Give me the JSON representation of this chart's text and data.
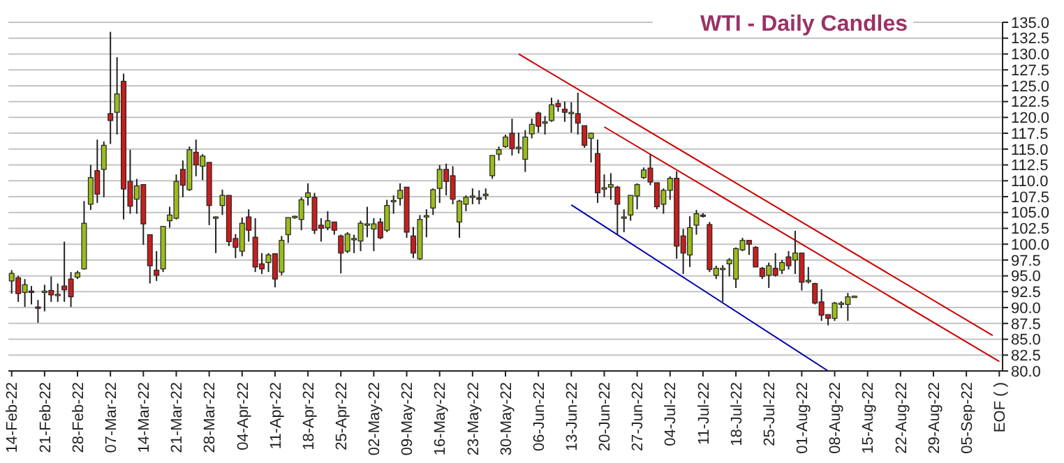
{
  "chart_data": {
    "type": "candlestick",
    "title": "WTI - Daily Candles",
    "grid": "y",
    "categories": [
      "14-Feb-22",
      null,
      null,
      null,
      null,
      "21-Feb-22",
      null,
      null,
      null,
      null,
      "28-Feb-22",
      null,
      null,
      null,
      null,
      "07-Mar-22",
      null,
      null,
      null,
      null,
      "14-Mar-22",
      null,
      null,
      null,
      null,
      "21-Mar-22",
      null,
      null,
      null,
      null,
      "28-Mar-22",
      null,
      null,
      null,
      null,
      "04-Apr-22",
      null,
      null,
      null,
      null,
      "11-Apr-22",
      null,
      null,
      null,
      null,
      "18-Apr-22",
      null,
      null,
      null,
      null,
      "25-Apr-22",
      null,
      null,
      null,
      null,
      "02-May-22",
      null,
      null,
      null,
      null,
      "09-May-22",
      null,
      null,
      null,
      null,
      "16-May-22",
      null,
      null,
      null,
      null,
      "23-May-22",
      null,
      null,
      null,
      null,
      "30-May-22",
      null,
      null,
      null,
      null,
      "06-Jun-22",
      null,
      null,
      null,
      null,
      "13-Jun-22",
      null,
      null,
      null,
      null,
      "20-Jun-22",
      null,
      null,
      null,
      null,
      "27-Jun-22",
      null,
      null,
      null,
      null,
      "04-Jul-22",
      null,
      null,
      null,
      null,
      "11-Jul-22",
      null,
      null,
      null,
      null,
      "18-Jul-22",
      null,
      null,
      null,
      null,
      "25-Jul-22",
      null,
      null,
      null,
      null,
      "01-Aug-22",
      null,
      null,
      null,
      null,
      "08-Aug-22",
      null,
      null,
      null,
      null,
      "15-Aug-22",
      null,
      null,
      null,
      null,
      "22-Aug-22",
      null,
      null,
      null,
      null,
      "29-Aug-22",
      null,
      null,
      null,
      null,
      "05-Sep-22",
      null,
      null,
      null,
      null,
      "EOF ( )"
    ],
    "ylim": [
      80,
      135
    ],
    "yticks": [
      {
        "value": 80,
        "label": "80.0"
      },
      {
        "value": 82.5,
        "label": "82.5"
      },
      {
        "value": 85,
        "label": "85.0"
      },
      {
        "value": 87.5,
        "label": "87.5"
      },
      {
        "value": 90,
        "label": "90.0"
      },
      {
        "value": 92.5,
        "label": "92.5"
      },
      {
        "value": 95,
        "label": "95.0"
      },
      {
        "value": 97.5,
        "label": "97.5"
      },
      {
        "value": 100,
        "label": "100.0"
      },
      {
        "value": 102.5,
        "label": "102.5"
      },
      {
        "value": 105,
        "label": "105.0"
      },
      {
        "value": 107.5,
        "label": "107.5"
      },
      {
        "value": 110,
        "label": "110.0"
      },
      {
        "value": 112.5,
        "label": "112.5"
      },
      {
        "value": 115,
        "label": "115.0"
      },
      {
        "value": 117.5,
        "label": "117.5"
      },
      {
        "value": 120,
        "label": "120.0"
      },
      {
        "value": 122.5,
        "label": "122.5"
      },
      {
        "value": 125,
        "label": "125.0"
      },
      {
        "value": 127.5,
        "label": "127.5"
      },
      {
        "value": 130,
        "label": "130.0"
      },
      {
        "value": 132.5,
        "label": "132.5"
      },
      {
        "value": 135,
        "label": "135.0"
      }
    ],
    "ohlc": [
      [
        94.2,
        95.9,
        92.2,
        95.4
      ],
      [
        94.7,
        95.0,
        90.9,
        92.2
      ],
      [
        92.4,
        94.5,
        90.1,
        93.6
      ],
      [
        92.6,
        93.4,
        90.5,
        92.5
      ],
      [
        90.1,
        91.2,
        87.6,
        90.0
      ],
      [
        92.5,
        93.6,
        89.4,
        92.6
      ],
      [
        92.7,
        94.9,
        90.9,
        92.0
      ],
      [
        92.0,
        93.8,
        90.9,
        92.1
      ],
      [
        93.4,
        100.4,
        90.9,
        92.8
      ],
      [
        94.5,
        95.6,
        90.1,
        91.7
      ],
      [
        94.8,
        95.8,
        94.5,
        95.5
      ],
      [
        96.1,
        106.8,
        96.0,
        103.3
      ],
      [
        106.3,
        112.5,
        105.4,
        110.5
      ],
      [
        111.6,
        116.5,
        106.5,
        107.9
      ],
      [
        111.8,
        116.2,
        107.4,
        115.6
      ],
      [
        120.6,
        133.5,
        115.8,
        119.5
      ],
      [
        120.8,
        129.5,
        117.3,
        123.7
      ],
      [
        125.7,
        126.9,
        103.9,
        108.7
      ],
      [
        109.9,
        114.9,
        104.8,
        106.0
      ],
      [
        107.1,
        110.3,
        104.8,
        109.2
      ],
      [
        109.4,
        109.4,
        99.9,
        103.2
      ],
      [
        101.5,
        101.5,
        93.8,
        96.6
      ],
      [
        95.9,
        98.9,
        94.2,
        95.1
      ],
      [
        96.1,
        102.8,
        95.6,
        102.8
      ],
      [
        103.7,
        105.9,
        102.6,
        104.6
      ],
      [
        104.1,
        111.0,
        103.9,
        109.9
      ],
      [
        111.8,
        113.2,
        107.4,
        109.3
      ],
      [
        108.6,
        115.4,
        108.4,
        114.9
      ],
      [
        114.5,
        116.5,
        110.7,
        112.5
      ],
      [
        112.3,
        114.2,
        110.1,
        113.9
      ],
      [
        112.9,
        112.9,
        103.0,
        106.1
      ],
      [
        104.3,
        104.4,
        98.6,
        104.3
      ],
      [
        106.1,
        108.6,
        104.6,
        107.7
      ],
      [
        107.7,
        107.7,
        99.7,
        100.4
      ],
      [
        100.9,
        101.6,
        97.8,
        99.5
      ],
      [
        98.9,
        104.2,
        98.1,
        103.3
      ],
      [
        104.3,
        105.5,
        100.4,
        102.2
      ],
      [
        101.1,
        104.1,
        95.6,
        96.4
      ],
      [
        96.9,
        98.6,
        95.3,
        96.1
      ],
      [
        97.1,
        98.6,
        95.6,
        98.3
      ],
      [
        98.5,
        98.5,
        93.2,
        94.5
      ],
      [
        95.6,
        101.3,
        95.1,
        100.6
      ],
      [
        101.5,
        104.2,
        100.2,
        104.2
      ],
      [
        104.3,
        104.5,
        104.0,
        104.4
      ],
      [
        103.9,
        107.4,
        102.2,
        107.0
      ],
      [
        107.4,
        109.6,
        106.1,
        108.1
      ],
      [
        107.4,
        108.1,
        101.6,
        102.2
      ],
      [
        103.0,
        104.1,
        100.4,
        102.5
      ],
      [
        102.6,
        105.2,
        102.2,
        103.7
      ],
      [
        103.5,
        103.5,
        101.5,
        102.2
      ],
      [
        101.3,
        101.5,
        95.4,
        98.6
      ],
      [
        98.9,
        101.9,
        98.6,
        101.6
      ],
      [
        100.7,
        101.5,
        98.6,
        100.9
      ],
      [
        100.5,
        103.7,
        98.9,
        103.3
      ],
      [
        103.1,
        105.9,
        101.1,
        103.2
      ],
      [
        102.4,
        104.1,
        98.9,
        103.2
      ],
      [
        103.5,
        104.1,
        100.8,
        101.0
      ],
      [
        102.2,
        107.0,
        101.9,
        106.1
      ],
      [
        106.8,
        107.7,
        104.8,
        106.9
      ],
      [
        107.2,
        109.6,
        106.1,
        108.5
      ],
      [
        109.0,
        109.0,
        101.0,
        101.9
      ],
      [
        101.3,
        102.7,
        97.8,
        98.6
      ],
      [
        97.7,
        104.6,
        97.5,
        103.9
      ],
      [
        104.4,
        105.5,
        101.1,
        104.5
      ],
      [
        105.7,
        108.8,
        104.6,
        108.6
      ],
      [
        108.8,
        112.5,
        106.5,
        111.8
      ],
      [
        111.8,
        112.7,
        107.7,
        109.9
      ],
      [
        110.8,
        112.3,
        106.3,
        107.1
      ],
      [
        103.5,
        107.0,
        101.0,
        106.8
      ],
      [
        106.3,
        107.7,
        105.2,
        107.4
      ],
      [
        107.5,
        108.8,
        106.3,
        107.6
      ],
      [
        107.3,
        108.5,
        106.3,
        107.2
      ],
      [
        107.8,
        108.8,
        107.0,
        107.9
      ],
      [
        110.8,
        114.0,
        110.3,
        114.0
      ],
      [
        114.2,
        115.4,
        113.2,
        114.9
      ],
      [
        115.4,
        117.3,
        115.2,
        116.9
      ],
      [
        117.5,
        119.8,
        114.0,
        115.1
      ],
      [
        115.2,
        117.6,
        114.3,
        115.3
      ],
      [
        113.4,
        118.0,
        111.4,
        116.9
      ],
      [
        117.4,
        119.8,
        116.7,
        118.9
      ],
      [
        120.7,
        120.9,
        117.6,
        118.6
      ],
      [
        119.2,
        120.2,
        117.3,
        119.3
      ],
      [
        119.5,
        123.1,
        119.3,
        122.0
      ],
      [
        122.2,
        122.8,
        120.9,
        121.7
      ],
      [
        121.3,
        122.5,
        119.3,
        120.8
      ],
      [
        120.6,
        122.4,
        117.6,
        120.8
      ],
      [
        120.6,
        123.9,
        117.3,
        119.1
      ],
      [
        118.7,
        118.7,
        115.2,
        115.6
      ],
      [
        116.7,
        117.6,
        112.9,
        117.5
      ],
      [
        114.3,
        116.5,
        106.5,
        108.1
      ],
      [
        108.8,
        111.0,
        107.4,
        108.9
      ],
      [
        109.0,
        111.2,
        107.0,
        109.4
      ],
      [
        109.0,
        109.2,
        101.5,
        106.3
      ],
      [
        104.2,
        105.5,
        101.9,
        104.3
      ],
      [
        104.6,
        107.7,
        103.7,
        107.7
      ],
      [
        107.6,
        109.6,
        105.5,
        109.4
      ],
      [
        110.5,
        112.1,
        110.3,
        111.7
      ],
      [
        112.0,
        114.2,
        109.3,
        109.8
      ],
      [
        109.7,
        109.7,
        105.5,
        105.9
      ],
      [
        106.3,
        108.8,
        104.8,
        108.5
      ],
      [
        108.5,
        110.7,
        107.0,
        110.4
      ],
      [
        110.4,
        111.5,
        97.7,
        99.7
      ],
      [
        101.3,
        102.4,
        95.3,
        98.6
      ],
      [
        98.3,
        104.4,
        96.4,
        102.6
      ],
      [
        103.0,
        105.4,
        101.5,
        104.8
      ],
      [
        104.6,
        104.9,
        104.2,
        104.5
      ],
      [
        103.1,
        103.5,
        95.6,
        96.0
      ],
      [
        95.1,
        96.6,
        94.5,
        96.2
      ],
      [
        96.1,
        96.7,
        90.9,
        96.2
      ],
      [
        96.9,
        97.8,
        94.9,
        97.5
      ],
      [
        94.5,
        99.5,
        93.1,
        99.3
      ],
      [
        99.1,
        101.0,
        98.9,
        100.6
      ],
      [
        100.6,
        100.6,
        98.3,
        100.0
      ],
      [
        99.5,
        99.7,
        96.4,
        96.4
      ],
      [
        96.2,
        96.4,
        94.5,
        94.9
      ],
      [
        95.1,
        97.1,
        93.1,
        96.6
      ],
      [
        96.2,
        98.6,
        94.9,
        95.1
      ],
      [
        95.9,
        97.5,
        95.3,
        97.1
      ],
      [
        98.0,
        98.9,
        96.0,
        96.6
      ],
      [
        97.5,
        102.1,
        95.3,
        98.6
      ],
      [
        98.6,
        98.6,
        92.7,
        94.0
      ],
      [
        94.2,
        96.4,
        93.8,
        94.3
      ],
      [
        93.8,
        93.9,
        90.5,
        90.7
      ],
      [
        90.9,
        92.9,
        87.9,
        88.8
      ],
      [
        88.9,
        88.9,
        87.2,
        88.3
      ],
      [
        88.3,
        90.9,
        87.9,
        90.7
      ],
      [
        90.6,
        91.0,
        89.9,
        90.7
      ],
      [
        90.5,
        92.3,
        87.9,
        91.7
      ],
      [
        91.8,
        91.9,
        91.7,
        91.8
      ],
      null,
      null,
      null,
      null,
      null,
      null,
      null,
      null,
      null,
      null,
      null,
      null,
      null,
      null,
      null,
      null,
      null,
      null,
      null,
      null,
      null,
      null
    ],
    "colors": [
      "#9cbc1c",
      "#c81e1e",
      "#9cbc1c",
      "#c81e1e",
      "#c81e1e",
      "#9cbc1c",
      "#c81e1e",
      "#9cbc1c",
      "#c81e1e",
      "#c81e1e",
      "#9cbc1c",
      "#9cbc1c",
      "#9cbc1c",
      "#c81e1e",
      "#9cbc1c",
      "#c81e1e",
      "#9cbc1c",
      "#c81e1e",
      "#c81e1e",
      "#9cbc1c",
      "#c81e1e",
      "#c81e1e",
      "#c81e1e",
      "#9cbc1c",
      "#9cbc1c",
      "#9cbc1c",
      "#c81e1e",
      "#9cbc1c",
      "#c81e1e",
      "#9cbc1c",
      "#c81e1e",
      "#9cbc1c",
      "#9cbc1c",
      "#c81e1e",
      "#c81e1e",
      "#9cbc1c",
      "#c81e1e",
      "#c81e1e",
      "#c81e1e",
      "#9cbc1c",
      "#c81e1e",
      "#9cbc1c",
      "#9cbc1c",
      "#9cbc1c",
      "#9cbc1c",
      "#9cbc1c",
      "#c81e1e",
      "#c81e1e",
      "#9cbc1c",
      "#c81e1e",
      "#c81e1e",
      "#9cbc1c",
      "#9cbc1c",
      "#9cbc1c",
      "#9cbc1c",
      "#9cbc1c",
      "#c81e1e",
      "#9cbc1c",
      "#9cbc1c",
      "#9cbc1c",
      "#c81e1e",
      "#c81e1e",
      "#9cbc1c",
      "#9cbc1c",
      "#9cbc1c",
      "#9cbc1c",
      "#c81e1e",
      "#c81e1e",
      "#9cbc1c",
      "#9cbc1c",
      "#9cbc1c",
      "#c81e1e",
      "#9cbc1c",
      "#9cbc1c",
      "#9cbc1c",
      "#9cbc1c",
      "#c81e1e",
      "#9cbc1c",
      "#9cbc1c",
      "#9cbc1c",
      "#c81e1e",
      "#9cbc1c",
      "#9cbc1c",
      "#c81e1e",
      "#c81e1e",
      "#9cbc1c",
      "#c81e1e",
      "#c81e1e",
      "#9cbc1c",
      "#c81e1e",
      "#9cbc1c",
      "#9cbc1c",
      "#c81e1e",
      "#9cbc1c",
      "#9cbc1c",
      "#9cbc1c",
      "#9cbc1c",
      "#c81e1e",
      "#c81e1e",
      "#9cbc1c",
      "#9cbc1c",
      "#c81e1e",
      "#c81e1e",
      "#9cbc1c",
      "#9cbc1c",
      "#c81e1e",
      "#c81e1e",
      "#9cbc1c",
      "#9cbc1c",
      "#9cbc1c",
      "#9cbc1c",
      "#9cbc1c",
      "#c81e1e",
      "#c81e1e",
      "#c81e1e",
      "#9cbc1c",
      "#c81e1e",
      "#9cbc1c",
      "#c81e1e",
      "#9cbc1c",
      "#c81e1e",
      "#9cbc1c",
      "#c81e1e",
      "#c81e1e",
      "#c81e1e",
      "#9cbc1c",
      "#9cbc1c",
      "#9cbc1c",
      "#9cbc1c",
      null,
      null,
      null,
      null,
      null,
      null,
      null,
      null,
      null,
      null,
      null,
      null,
      null,
      null,
      null,
      null,
      null,
      null,
      null,
      null,
      null,
      null
    ],
    "series": [
      {
        "type": "line",
        "color": "#cc0000",
        "values": [
          null,
          null,
          null,
          null,
          null,
          null,
          null,
          null,
          null,
          null,
          null,
          null,
          null,
          null,
          null,
          null,
          null,
          null,
          null,
          null,
          null,
          null,
          null,
          null,
          null,
          null,
          null,
          null,
          null,
          null,
          null,
          null,
          null,
          null,
          null,
          null,
          null,
          null,
          null,
          null,
          null,
          null,
          null,
          null,
          null,
          null,
          null,
          null,
          null,
          null,
          null,
          null,
          null,
          null,
          null,
          null,
          null,
          null,
          null,
          null,
          null,
          null,
          null,
          null,
          null,
          null,
          null,
          null,
          null,
          null,
          null,
          null,
          null,
          null,
          null,
          null,
          null,
          130.0,
          null,
          null,
          null,
          null,
          null,
          null,
          null,
          null,
          null,
          null,
          null,
          null,
          null,
          null,
          null,
          null,
          null,
          null,
          null,
          null,
          null,
          null,
          null,
          null,
          null,
          null,
          null,
          null,
          null,
          null,
          null,
          null,
          null,
          null,
          null,
          null,
          null,
          null,
          null,
          null,
          null,
          null,
          null,
          null,
          null,
          null,
          null,
          null,
          null,
          null,
          null,
          null,
          null,
          null,
          null,
          null,
          null,
          null,
          null,
          null,
          null,
          null,
          null,
          null,
          null,
          null,
          null,
          null,
          null,
          null,
          null,
          85.6,
          null
        ]
      },
      {
        "type": "line",
        "color": "#cc0000",
        "values": [
          null,
          null,
          null,
          null,
          null,
          null,
          null,
          null,
          null,
          null,
          null,
          null,
          null,
          null,
          null,
          null,
          null,
          null,
          null,
          null,
          null,
          null,
          null,
          null,
          null,
          null,
          null,
          null,
          null,
          null,
          null,
          null,
          null,
          null,
          null,
          null,
          null,
          null,
          null,
          null,
          null,
          null,
          null,
          null,
          null,
          null,
          null,
          null,
          null,
          null,
          null,
          null,
          null,
          null,
          null,
          null,
          null,
          null,
          null,
          null,
          null,
          null,
          null,
          null,
          null,
          null,
          null,
          null,
          null,
          null,
          null,
          null,
          null,
          null,
          null,
          null,
          null,
          null,
          null,
          null,
          null,
          null,
          null,
          null,
          null,
          null,
          null,
          null,
          null,
          null,
          118.5,
          null,
          null,
          null,
          null,
          null,
          null,
          null,
          null,
          null,
          null,
          null,
          null,
          null,
          null,
          null,
          null,
          null,
          null,
          null,
          null,
          null,
          null,
          null,
          null,
          null,
          null,
          null,
          null,
          null,
          null,
          null,
          null,
          null,
          null,
          null,
          null,
          null,
          null,
          null,
          null,
          null,
          null,
          null,
          null,
          null,
          null,
          null,
          null,
          null,
          null,
          null,
          null,
          null,
          null,
          null,
          null,
          null,
          null,
          null,
          81.5
        ]
      },
      {
        "type": "line",
        "color": "#0000aa",
        "values": [
          null,
          null,
          null,
          null,
          null,
          null,
          null,
          null,
          null,
          null,
          null,
          null,
          null,
          null,
          null,
          null,
          null,
          null,
          null,
          null,
          null,
          null,
          null,
          null,
          null,
          null,
          null,
          null,
          null,
          null,
          null,
          null,
          null,
          null,
          null,
          null,
          null,
          null,
          null,
          null,
          null,
          null,
          null,
          null,
          null,
          null,
          null,
          null,
          null,
          null,
          null,
          null,
          null,
          null,
          null,
          null,
          null,
          null,
          null,
          null,
          null,
          null,
          null,
          null,
          null,
          null,
          null,
          null,
          null,
          null,
          null,
          null,
          null,
          null,
          null,
          null,
          null,
          null,
          null,
          null,
          null,
          null,
          null,
          null,
          null,
          106.2,
          null,
          null,
          null,
          null,
          null,
          null,
          null,
          null,
          null,
          null,
          null,
          null,
          null,
          null,
          null,
          null,
          null,
          null,
          null,
          null,
          null,
          null,
          null,
          null,
          null,
          null,
          null,
          null,
          null,
          null,
          null,
          null,
          null,
          null,
          null,
          null,
          null,
          null,
          80.0,
          null,
          null,
          null,
          null,
          null,
          null,
          null,
          null,
          null,
          null,
          null,
          null,
          null,
          null,
          null,
          null,
          null,
          null,
          null,
          null,
          null,
          null,
          null,
          null,
          null,
          null
        ]
      }
    ]
  }
}
